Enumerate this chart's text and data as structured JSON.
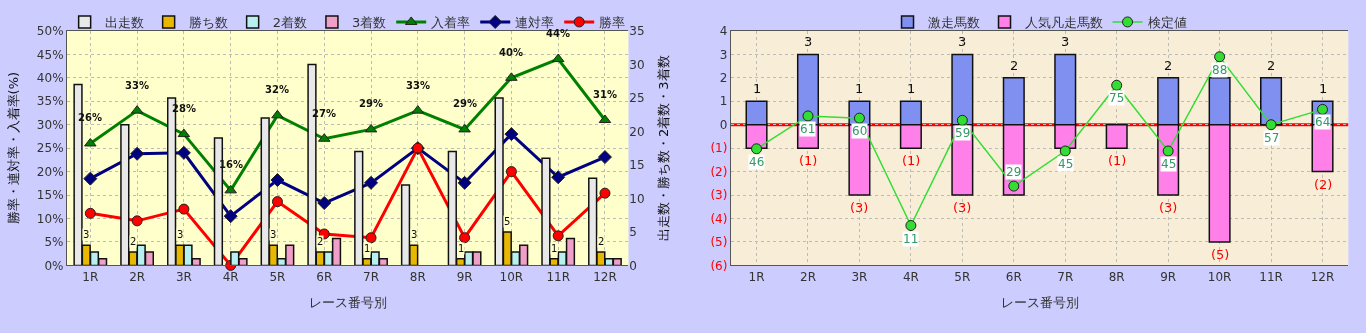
{
  "chart_data": [
    {
      "type": "bar",
      "xlabel": "レース番号別",
      "ylabel": "勝率・連対率・入着率(%)",
      "y2label": "出走数・勝ち数・2着数・3着数",
      "categories": [
        "1R",
        "2R",
        "3R",
        "4R",
        "5R",
        "6R",
        "7R",
        "8R",
        "9R",
        "10R",
        "11R",
        "12R"
      ],
      "series": [
        {
          "name": "出走数",
          "color": "#e8e8e8",
          "axis": "y2",
          "values": [
            27,
            21,
            25,
            19,
            22,
            30,
            17,
            12,
            17,
            25,
            16,
            13
          ]
        },
        {
          "name": "勝ち数",
          "color": "#e8b800",
          "axis": "y2",
          "values": [
            3,
            2,
            3,
            0,
            3,
            2,
            1,
            3,
            1,
            5,
            1,
            2
          ],
          "value_labels": [
            "3",
            "2",
            "3",
            null,
            "3",
            "2",
            "1",
            "3",
            "1",
            "5",
            "1",
            "2"
          ]
        },
        {
          "name": "2着数",
          "color": "#b8f0f0",
          "axis": "y2",
          "values": [
            2,
            3,
            3,
            2,
            1,
            2,
            2,
            0,
            2,
            2,
            2,
            1
          ]
        },
        {
          "name": "3着数",
          "color": "#f0a0c8",
          "axis": "y2",
          "values": [
            1,
            2,
            1,
            1,
            3,
            4,
            1,
            0,
            2,
            3,
            4,
            1
          ]
        },
        {
          "name": "入着率",
          "type": "line",
          "color": "#008000",
          "marker": "triangle",
          "values": [
            26,
            33,
            28,
            16,
            32,
            27,
            29,
            33,
            29,
            40,
            44,
            31
          ],
          "value_labels": [
            "26%",
            "33%",
            "28%",
            "16%",
            "32%",
            "27%",
            "29%",
            "33%",
            "29%",
            "40%",
            "44%",
            "31%"
          ]
        },
        {
          "name": "連対率",
          "type": "line",
          "color": "#000080",
          "marker": "diamond",
          "values": [
            18.5,
            23.8,
            24.0,
            10.5,
            18.2,
            13.3,
            17.6,
            25.0,
            17.6,
            28.0,
            18.8,
            23.1
          ]
        },
        {
          "name": "勝率",
          "type": "line",
          "color": "#ff0000",
          "marker": "circle",
          "values": [
            11.1,
            9.5,
            12.0,
            0,
            13.6,
            6.7,
            5.9,
            25.0,
            5.9,
            20.0,
            6.3,
            15.4
          ]
        }
      ],
      "ylim": [
        0,
        50
      ],
      "yticks": [
        {
          "value": 0,
          "label": "0%"
        },
        {
          "value": 5,
          "label": "5%"
        },
        {
          "value": 10,
          "label": "10%"
        },
        {
          "value": 15,
          "label": "15%"
        },
        {
          "value": 20,
          "label": "20%"
        },
        {
          "value": 25,
          "label": "25%"
        },
        {
          "value": 30,
          "label": "30%"
        },
        {
          "value": 35,
          "label": "35%"
        },
        {
          "value": 40,
          "label": "40%"
        },
        {
          "value": 45,
          "label": "45%"
        },
        {
          "value": 50,
          "label": "50%"
        }
      ],
      "y2lim": [
        0,
        35
      ],
      "y2ticks": [
        0,
        5,
        10,
        15,
        20,
        25,
        30,
        35
      ],
      "grid": true,
      "legend": "top"
    },
    {
      "type": "bar",
      "xlabel": "レース番号別",
      "stacked": true,
      "categories": [
        "1R",
        "2R",
        "3R",
        "4R",
        "5R",
        "6R",
        "7R",
        "8R",
        "9R",
        "10R",
        "11R",
        "12R"
      ],
      "series": [
        {
          "name": "激走馬数",
          "color": "#8090f0",
          "values": [
            1,
            3,
            1,
            1,
            3,
            2,
            3,
            0,
            2,
            2,
            2,
            1
          ],
          "value_labels": [
            "1",
            "3",
            "1",
            "1",
            "3",
            "2",
            "3",
            null,
            "2",
            null,
            "2",
            "1"
          ]
        },
        {
          "name": "人気凡走馬数",
          "color": "#ff80e8",
          "values": [
            -1,
            -1,
            -3,
            -1,
            -3,
            -3,
            -1,
            -1,
            -3,
            -5,
            0,
            -2
          ],
          "value_labels": [
            null,
            "(1)",
            "(3)",
            "(1)",
            "(3)",
            null,
            null,
            "(1)",
            "(3)",
            "(5)",
            null,
            "(2)"
          ]
        },
        {
          "name": "検定値",
          "type": "line",
          "axis": "y2",
          "color": "#33dd33",
          "marker": "circle",
          "values": [
            46,
            61,
            60,
            11,
            59,
            29,
            45,
            75,
            45,
            88,
            57,
            64
          ],
          "value_labels": [
            "46",
            "61",
            "60",
            "11",
            "59",
            "29",
            "45",
            "75",
            "45",
            "88",
            "57",
            "64"
          ]
        }
      ],
      "ylim": [
        -6,
        4
      ],
      "yticks": [
        {
          "value": -6,
          "label": "(6)"
        },
        {
          "value": -5,
          "label": "(5)"
        },
        {
          "value": -4,
          "label": "(4)"
        },
        {
          "value": -3,
          "label": "(3)"
        },
        {
          "value": -2,
          "label": "(2)"
        },
        {
          "value": -1,
          "label": "(1)"
        },
        0,
        1,
        2,
        3,
        4
      ],
      "y2lim": [
        -7.2,
        99.8
      ],
      "ref_lines": [
        {
          "axis": "y",
          "value": 0,
          "color": "#ff0000"
        }
      ],
      "grid": true,
      "legend": "top"
    }
  ]
}
